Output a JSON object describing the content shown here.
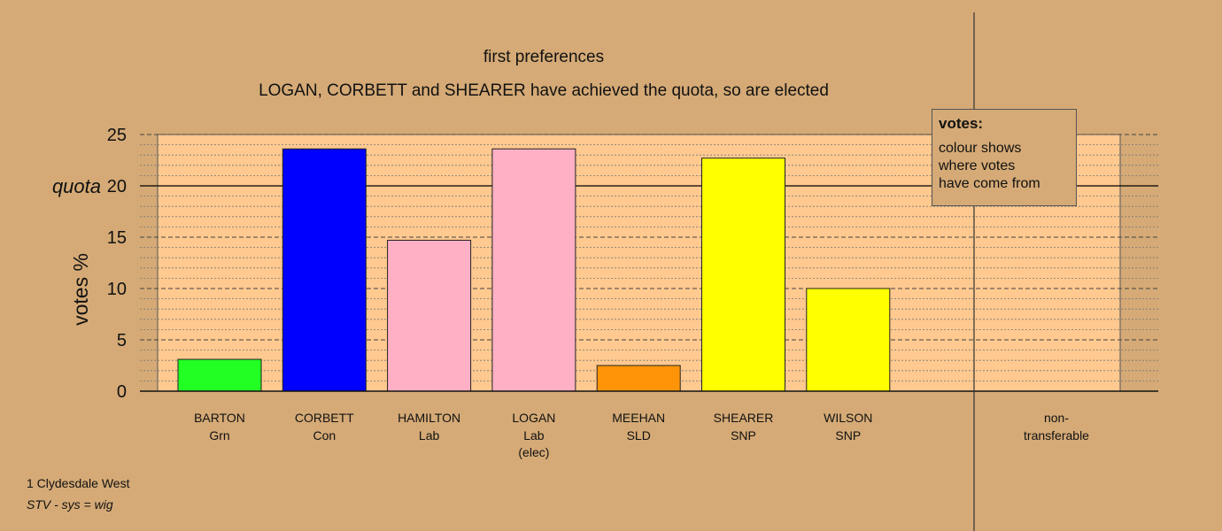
{
  "chart_data": {
    "type": "bar",
    "title": "first preferences",
    "subtitle": "LOGAN, CORBETT and SHEARER have achieved the quota, so are elected",
    "ylabel": "votes %",
    "ylim": [
      0,
      25
    ],
    "yticks": [
      0,
      5,
      10,
      15,
      20,
      25
    ],
    "quota": 20,
    "quota_label": "quota",
    "grid": true,
    "categories": [
      {
        "name": "BARTON",
        "party": "Grn",
        "extra": ""
      },
      {
        "name": "CORBETT",
        "party": "Con",
        "extra": ""
      },
      {
        "name": "HAMILTON",
        "party": "Lab",
        "extra": ""
      },
      {
        "name": "LOGAN",
        "party": "Lab",
        "extra": "(elec)"
      },
      {
        "name": "MEEHAN",
        "party": "SLD",
        "extra": ""
      },
      {
        "name": "SHEARER",
        "party": "SNP",
        "extra": ""
      },
      {
        "name": "WILSON",
        "party": "SNP",
        "extra": ""
      }
    ],
    "values": [
      3.1,
      23.6,
      14.7,
      23.6,
      2.5,
      22.7,
      10.0
    ],
    "colors": [
      "#22ff22",
      "#0000ff",
      "#ffb0c4",
      "#ffb0c4",
      "#ff9408",
      "#ffff00",
      "#ffff00"
    ],
    "nontransferable": {
      "label_line1": "non-",
      "label_line2": "transferable",
      "value": 0
    }
  },
  "legend": {
    "title": "votes:",
    "lines": [
      "colour shows",
      "where votes",
      "have come from"
    ]
  },
  "footer": {
    "line1": "1 Clydesdale West",
    "line2": "STV - sys = wig"
  },
  "colors": {
    "background": "#d5aa76",
    "plot_area": "#ffc98f"
  }
}
